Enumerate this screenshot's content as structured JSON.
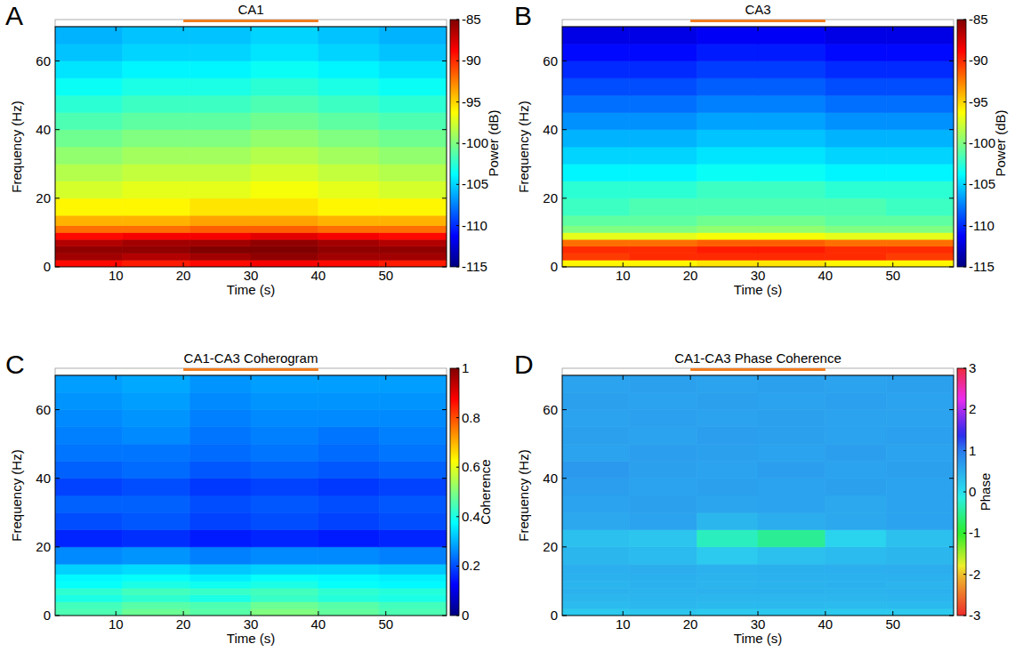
{
  "chart_data": [
    {
      "type": "heatmap",
      "panel": "A",
      "title": "CA1",
      "x_label": "Time (s)",
      "y_label": "Frequency (Hz)",
      "color": "jet",
      "xlim": [
        1,
        59
      ],
      "xticks": [
        10,
        20,
        30,
        40,
        50
      ],
      "ylim": [
        0,
        70
      ],
      "yticks": [
        0,
        20,
        40,
        60
      ],
      "highlight": [
        20,
        40
      ],
      "x_edges": [
        1,
        11,
        21,
        30,
        40,
        49,
        59
      ],
      "y_edges": [
        0,
        2,
        4,
        6,
        8,
        10,
        12,
        15,
        20,
        25,
        30,
        35,
        40,
        45,
        50,
        55,
        60,
        65,
        70
      ],
      "cells": [
        [
          -89,
          -89.5,
          -89,
          -88.5,
          -89,
          -89.5
        ],
        [
          -86,
          -86.5,
          -86,
          -85.5,
          -86,
          -86
        ],
        [
          -85.5,
          -85.5,
          -85,
          -85,
          -85.5,
          -85.5
        ],
        [
          -86.5,
          -86,
          -86,
          -85.5,
          -86,
          -86.5
        ],
        [
          -89,
          -88.5,
          -88.5,
          -88,
          -88.5,
          -89
        ],
        [
          -92,
          -92,
          -91.5,
          -91.5,
          -92,
          -92
        ],
        [
          -94,
          -94,
          -93.5,
          -93.5,
          -94,
          -94
        ],
        [
          -96,
          -96,
          -95.5,
          -95.5,
          -96,
          -96
        ],
        [
          -97.5,
          -97,
          -97,
          -96.5,
          -97,
          -97.5
        ],
        [
          -98.5,
          -98,
          -98,
          -97.5,
          -98,
          -98.5
        ],
        [
          -99.5,
          -99,
          -99,
          -98.5,
          -99,
          -99.5
        ],
        [
          -100.5,
          -100,
          -100,
          -99.5,
          -100,
          -100.5
        ],
        [
          -101.5,
          -101,
          -101,
          -100.5,
          -101,
          -101.5
        ],
        [
          -102.5,
          -102,
          -102,
          -101.5,
          -102,
          -102.5
        ],
        [
          -103.5,
          -103,
          -103,
          -102.5,
          -103,
          -103.5
        ],
        [
          -104.5,
          -104,
          -104,
          -103.5,
          -104,
          -104.5
        ],
        [
          -105.5,
          -105,
          -105,
          -104.5,
          -105,
          -105.5
        ],
        [
          -106,
          -105.5,
          -105.5,
          -105,
          -105.5,
          -106
        ]
      ],
      "colorbar": {
        "label": "Power (dB)",
        "range": [
          -115,
          -85
        ],
        "ticks": [
          -115,
          -110,
          -105,
          -100,
          -95,
          -90,
          -85
        ]
      }
    },
    {
      "type": "heatmap",
      "panel": "B",
      "title": "CA3",
      "x_label": "Time (s)",
      "y_label": "Frequency (Hz)",
      "color": "jet",
      "xlim": [
        1,
        59
      ],
      "xticks": [
        10,
        20,
        30,
        40,
        50
      ],
      "ylim": [
        0,
        70
      ],
      "yticks": [
        0,
        20,
        40,
        60
      ],
      "highlight": [
        20,
        40
      ],
      "x_edges": [
        1,
        11,
        21,
        30,
        40,
        49,
        59
      ],
      "y_edges": [
        0,
        2,
        4,
        6,
        8,
        10,
        12,
        15,
        20,
        25,
        30,
        35,
        40,
        45,
        50,
        55,
        60,
        65,
        70
      ],
      "cells": [
        [
          -96,
          -96,
          -95.5,
          -95.5,
          -96,
          -96
        ],
        [
          -90.5,
          -90,
          -90,
          -90,
          -90,
          -90.5
        ],
        [
          -90,
          -90,
          -89.5,
          -89.5,
          -90,
          -90
        ],
        [
          -92,
          -92,
          -91.5,
          -91.5,
          -92,
          -92
        ],
        [
          -97,
          -97,
          -96.5,
          -96.5,
          -97,
          -97
        ],
        [
          -100,
          -100,
          -99.5,
          -99.5,
          -100,
          -100
        ],
        [
          -101,
          -101,
          -100.5,
          -100.5,
          -101,
          -101
        ],
        [
          -102,
          -101.5,
          -101.5,
          -101.5,
          -101.5,
          -102
        ],
        [
          -102.5,
          -102.5,
          -102,
          -102,
          -102.5,
          -102.5
        ],
        [
          -104,
          -104,
          -103.5,
          -103.5,
          -104,
          -104
        ],
        [
          -105,
          -105,
          -104.5,
          -104.5,
          -105,
          -105
        ],
        [
          -106,
          -106,
          -105.5,
          -105.5,
          -106,
          -106
        ],
        [
          -107,
          -107,
          -106.5,
          -106.5,
          -107,
          -107
        ],
        [
          -108,
          -108,
          -107.5,
          -107.5,
          -108,
          -108
        ],
        [
          -109,
          -109,
          -108.5,
          -108.5,
          -109,
          -109
        ],
        [
          -110,
          -110,
          -109.5,
          -109.5,
          -110,
          -110
        ],
        [
          -111,
          -111,
          -110.5,
          -110.5,
          -111,
          -111
        ],
        [
          -112,
          -112,
          -111.5,
          -111.5,
          -112,
          -112
        ]
      ],
      "colorbar": {
        "label": "Power (dB)",
        "range": [
          -115,
          -85
        ],
        "ticks": [
          -115,
          -110,
          -105,
          -100,
          -95,
          -90,
          -85
        ]
      }
    },
    {
      "type": "heatmap",
      "panel": "C",
      "title": "CA1-CA3 Coherogram",
      "x_label": "Time (s)",
      "y_label": "Frequency (Hz)",
      "color": "jet",
      "xlim": [
        1,
        59
      ],
      "xticks": [
        10,
        20,
        30,
        40,
        50
      ],
      "ylim": [
        0,
        70
      ],
      "yticks": [
        0,
        20,
        40,
        60
      ],
      "highlight": [
        20,
        40
      ],
      "x_edges": [
        1,
        11,
        21,
        30,
        40,
        49,
        59
      ],
      "y_edges": [
        0,
        2,
        4,
        6,
        8,
        10,
        12,
        15,
        20,
        25,
        30,
        35,
        40,
        45,
        50,
        55,
        60,
        65,
        70
      ],
      "cells": [
        [
          0.45,
          0.48,
          0.46,
          0.5,
          0.47,
          0.45
        ],
        [
          0.44,
          0.46,
          0.45,
          0.48,
          0.46,
          0.44
        ],
        [
          0.4,
          0.42,
          0.4,
          0.43,
          0.41,
          0.4
        ],
        [
          0.42,
          0.44,
          0.43,
          0.44,
          0.42,
          0.41
        ],
        [
          0.38,
          0.4,
          0.39,
          0.4,
          0.38,
          0.37
        ],
        [
          0.37,
          0.38,
          0.36,
          0.38,
          0.37,
          0.36
        ],
        [
          0.33,
          0.34,
          0.32,
          0.33,
          0.33,
          0.32
        ],
        [
          0.26,
          0.27,
          0.25,
          0.26,
          0.26,
          0.25
        ],
        [
          0.16,
          0.17,
          0.15,
          0.16,
          0.15,
          0.16
        ],
        [
          0.2,
          0.21,
          0.19,
          0.2,
          0.19,
          0.2
        ],
        [
          0.22,
          0.22,
          0.2,
          0.21,
          0.2,
          0.21
        ],
        [
          0.19,
          0.2,
          0.18,
          0.19,
          0.18,
          0.19
        ],
        [
          0.22,
          0.23,
          0.21,
          0.22,
          0.21,
          0.22
        ],
        [
          0.24,
          0.24,
          0.23,
          0.24,
          0.23,
          0.24
        ],
        [
          0.25,
          0.26,
          0.24,
          0.25,
          0.24,
          0.25
        ],
        [
          0.26,
          0.27,
          0.25,
          0.26,
          0.26,
          0.26
        ],
        [
          0.27,
          0.28,
          0.26,
          0.27,
          0.27,
          0.27
        ],
        [
          0.28,
          0.29,
          0.27,
          0.28,
          0.28,
          0.28
        ]
      ],
      "colorbar": {
        "label": "Coherence",
        "range": [
          0,
          1
        ],
        "ticks": [
          0,
          0.2,
          0.4,
          0.6,
          0.8,
          1
        ]
      }
    },
    {
      "type": "heatmap",
      "panel": "D",
      "title": "CA1-CA3 Phase Coherence",
      "x_label": "Time (s)",
      "y_label": "Frequency (Hz)",
      "color": "hsv",
      "xlim": [
        1,
        59
      ],
      "xticks": [
        10,
        20,
        30,
        40,
        50
      ],
      "ylim": [
        0,
        70
      ],
      "yticks": [
        0,
        20,
        40,
        60
      ],
      "highlight": [
        20,
        40
      ],
      "x_edges": [
        1,
        11,
        21,
        30,
        40,
        49,
        59
      ],
      "y_edges": [
        0,
        2,
        4,
        6,
        8,
        10,
        12,
        15,
        20,
        25,
        30,
        35,
        40,
        45,
        50,
        55,
        60,
        65,
        70
      ],
      "cells": [
        [
          0.2,
          0.25,
          0.2,
          0.22,
          0.2,
          0.2
        ],
        [
          0.35,
          0.38,
          0.36,
          0.37,
          0.35,
          0.36
        ],
        [
          0.4,
          0.42,
          0.4,
          0.41,
          0.4,
          0.42
        ],
        [
          0.45,
          0.44,
          0.46,
          0.45,
          0.44,
          0.45
        ],
        [
          0.42,
          0.45,
          0.43,
          0.44,
          0.45,
          0.43
        ],
        [
          0.45,
          0.47,
          0.44,
          0.46,
          0.45,
          0.46
        ],
        [
          0.48,
          0.5,
          0.45,
          0.47,
          0.48,
          0.5
        ],
        [
          0.4,
          0.35,
          0.2,
          0.3,
          0.35,
          0.4
        ],
        [
          0.3,
          0.25,
          -0.3,
          -0.5,
          0.1,
          0.3
        ],
        [
          0.55,
          0.6,
          0.4,
          0.5,
          0.55,
          0.6
        ],
        [
          0.6,
          0.62,
          0.58,
          0.6,
          0.55,
          0.6
        ],
        [
          0.65,
          0.6,
          0.62,
          0.6,
          0.62,
          0.6
        ],
        [
          0.7,
          0.62,
          0.6,
          0.65,
          0.6,
          0.62
        ],
        [
          0.6,
          0.65,
          0.62,
          0.6,
          0.64,
          0.6
        ],
        [
          0.62,
          0.6,
          0.65,
          0.62,
          0.6,
          0.63
        ],
        [
          0.6,
          0.63,
          0.6,
          0.62,
          0.6,
          0.6
        ],
        [
          0.62,
          0.6,
          0.62,
          0.6,
          0.63,
          0.6
        ],
        [
          0.6,
          0.62,
          0.6,
          0.62,
          0.6,
          0.62
        ]
      ],
      "colorbar": {
        "label": "Phase",
        "range": [
          -3,
          3
        ],
        "ticks": [
          -3,
          -2,
          -1,
          0,
          1,
          2,
          3
        ]
      }
    }
  ]
}
